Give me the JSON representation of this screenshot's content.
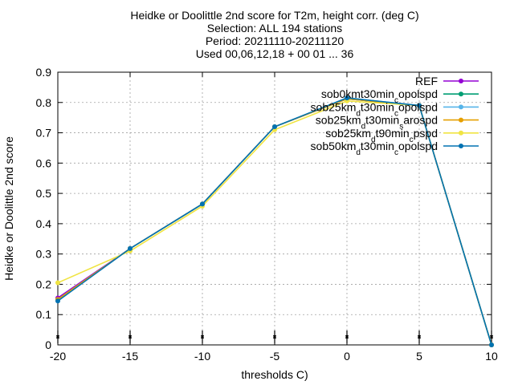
{
  "chart_data": {
    "type": "line",
    "title_lines": [
      "Heidke or Doolittle 2nd score  for T2m, height corr. (deg C)",
      "Selection: ALL    194 stations",
      "Period: 20211110-20211120",
      "Used 00,06,12,18 + 00 01 ... 36"
    ],
    "xlabel": "thresholds C)",
    "ylabel": "Heidke or Doolittle 2nd score",
    "xlim": [
      -20,
      10
    ],
    "ylim": [
      0,
      0.9
    ],
    "xticks": [
      -20,
      -15,
      -10,
      -5,
      0,
      5,
      10
    ],
    "xtick_labels": [
      "-20",
      "-15",
      "-10",
      "-5",
      "0",
      "5",
      "10"
    ],
    "yticks": [
      0,
      0.1,
      0.2,
      0.3,
      0.4,
      0.5,
      0.6,
      0.7,
      0.8,
      0.9
    ],
    "ytick_labels": [
      "0",
      "0.1",
      "0.2",
      "0.3",
      "0.4",
      "0.5",
      "0.6",
      "0.7",
      "0.8",
      "0.9"
    ],
    "grid": true,
    "legend_position": "top-right",
    "x": [
      -20,
      -15,
      -10,
      -5,
      0,
      5,
      10
    ],
    "series": [
      {
        "name": "REF",
        "name_parts": [
          [
            "REF",
            ""
          ]
        ],
        "color": "#9400d3",
        "values": [
          0.155,
          0.318,
          0.465,
          0.72,
          0.812,
          0.79,
          0.0
        ]
      },
      {
        "name": "sob0km_t30min_copolspd",
        "name_parts": [
          [
            "sob0km",
            ""
          ],
          [
            "t30min",
            ""
          ],
          [
            "c",
            "sub"
          ],
          [
            "opolspd",
            ""
          ]
        ],
        "color": "#009e73",
        "values": [
          0.15,
          0.318,
          0.465,
          0.72,
          0.812,
          0.79,
          0.0
        ]
      },
      {
        "name": "sob25km_dt30min_copolspd",
        "name_parts": [
          [
            "sob25km",
            ""
          ],
          [
            "d",
            "sub"
          ],
          [
            "t30min",
            ""
          ],
          [
            "c",
            "sub"
          ],
          [
            "opolspd",
            ""
          ]
        ],
        "color": "#56b4e9",
        "values": [
          0.15,
          0.318,
          0.465,
          0.72,
          0.815,
          0.79,
          0.0
        ]
      },
      {
        "name": "sob25km_dt30min_sarospd",
        "name_parts": [
          [
            "sob25km",
            ""
          ],
          [
            "d",
            "sub"
          ],
          [
            "t30min",
            ""
          ],
          [
            "s",
            "sub"
          ],
          [
            "arospd",
            ""
          ]
        ],
        "color": "#e69f00",
        "values": [
          0.15,
          0.318,
          0.465,
          0.72,
          0.812,
          0.79,
          0.0
        ]
      },
      {
        "name": "sob25km_dt90min_cpspd",
        "name_parts": [
          [
            "sob25km",
            ""
          ],
          [
            "d",
            "sub"
          ],
          [
            "t90min",
            ""
          ],
          [
            "c",
            "sub"
          ],
          [
            "pspd",
            ""
          ]
        ],
        "color": "#f0e442",
        "values": [
          0.205,
          0.31,
          0.458,
          0.71,
          0.805,
          0.79,
          0.0
        ]
      },
      {
        "name": "sob50km_dt30min_copolspd",
        "name_parts": [
          [
            "sob50km",
            ""
          ],
          [
            "d",
            "sub"
          ],
          [
            "t30min",
            ""
          ],
          [
            "c",
            "sub"
          ],
          [
            "opolspd",
            ""
          ]
        ],
        "color": "#0072b2",
        "values": [
          0.145,
          0.318,
          0.465,
          0.72,
          0.815,
          0.79,
          0.0
        ]
      }
    ],
    "tick_arrows_at": [
      -20,
      -15,
      -10,
      -5,
      0,
      5,
      10
    ]
  }
}
